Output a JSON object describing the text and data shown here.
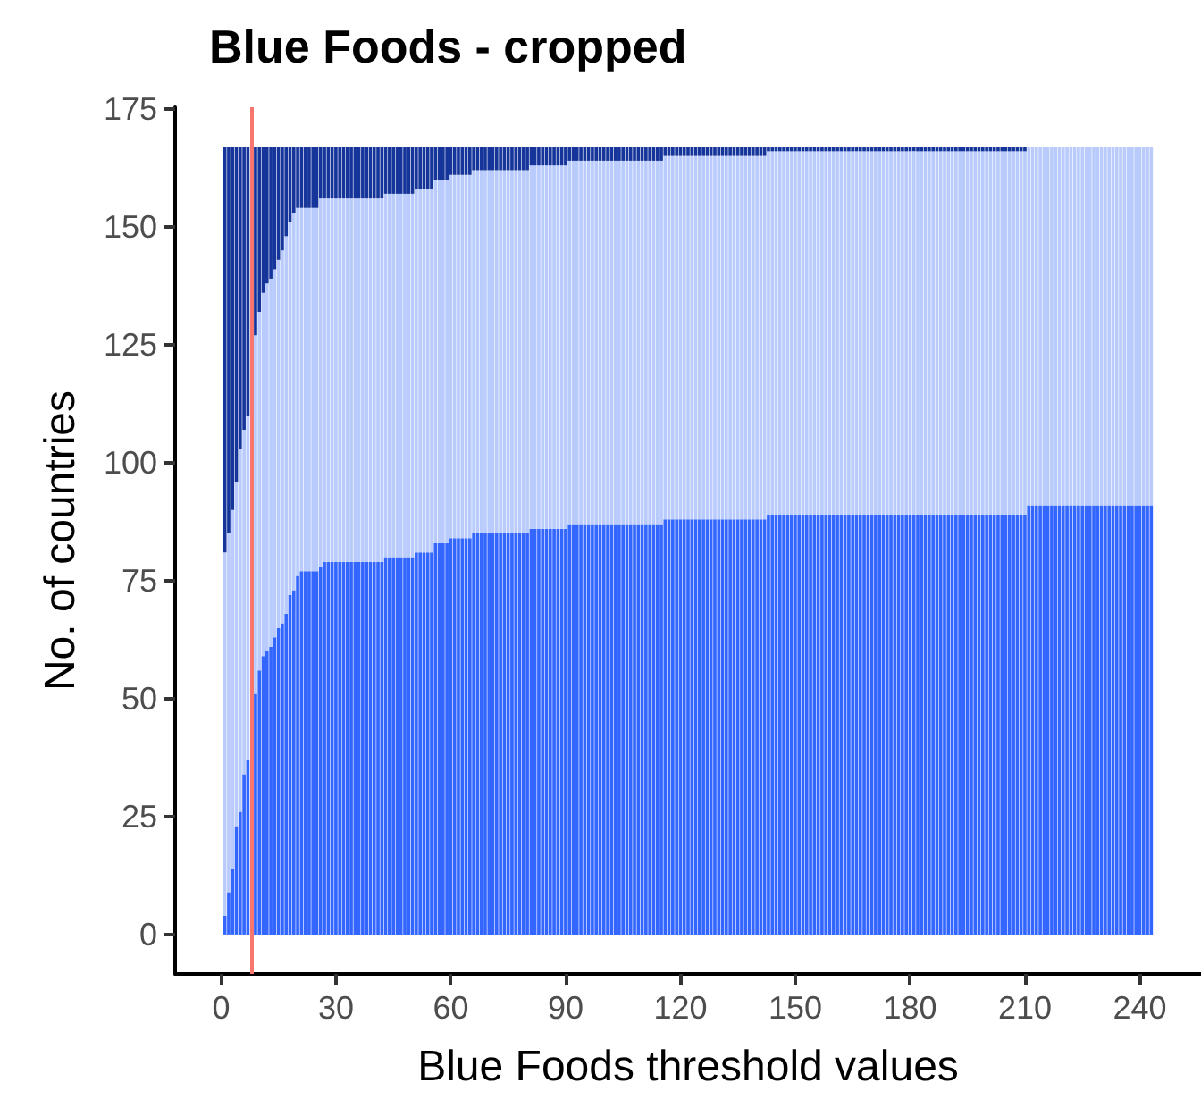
{
  "chart_data": {
    "type": "bar",
    "title": "Blue Foods - cropped",
    "xlabel": "Blue Foods threshold values",
    "ylabel": "No. of countries",
    "stacked": true,
    "x": [
      1,
      2,
      3,
      4,
      5,
      6,
      7,
      8,
      9,
      10,
      11,
      12,
      13,
      14,
      15,
      16,
      17,
      18,
      19,
      20,
      21,
      22,
      23,
      24,
      25,
      26,
      27,
      28,
      29,
      30,
      31,
      32,
      33,
      34,
      35,
      36,
      37,
      38,
      39,
      40,
      41,
      42,
      43,
      44,
      45,
      46,
      47,
      48,
      49,
      50,
      51,
      52,
      53,
      54,
      55,
      56,
      57,
      58,
      59,
      60,
      61,
      62,
      63,
      64,
      65,
      66,
      67,
      68,
      69,
      70,
      71,
      72,
      73,
      74,
      75,
      76,
      77,
      78,
      79,
      80,
      81,
      82,
      83,
      84,
      85,
      86,
      87,
      88,
      89,
      90,
      91,
      92,
      93,
      94,
      95,
      96,
      97,
      98,
      99,
      100,
      101,
      102,
      103,
      104,
      105,
      106,
      107,
      108,
      109,
      110,
      111,
      112,
      113,
      114,
      115,
      116,
      117,
      118,
      119,
      120,
      121,
      122,
      123,
      124,
      125,
      126,
      127,
      128,
      129,
      130,
      131,
      132,
      133,
      134,
      135,
      136,
      137,
      138,
      139,
      140,
      141,
      142,
      143,
      144,
      145,
      146,
      147,
      148,
      149,
      150,
      151,
      152,
      153,
      154,
      155,
      156,
      157,
      158,
      159,
      160,
      161,
      162,
      163,
      164,
      165,
      166,
      167,
      168,
      169,
      170,
      171,
      172,
      173,
      174,
      175,
      176,
      177,
      178,
      179,
      180,
      181,
      182,
      183,
      184,
      185,
      186,
      187,
      188,
      189,
      190,
      191,
      192,
      193,
      194,
      195,
      196,
      197,
      198,
      199,
      200,
      201,
      202,
      203,
      204,
      205,
      206,
      207,
      208,
      209,
      210,
      211,
      212,
      213,
      214,
      215,
      216,
      217,
      218,
      219,
      220,
      221,
      222,
      223,
      224,
      225,
      226,
      227,
      228,
      229,
      230,
      231,
      232,
      233,
      234,
      235,
      236,
      237,
      238,
      239,
      240,
      241,
      242,
      243
    ],
    "series": [
      {
        "color": "#3366ff",
        "values": [
          4,
          9,
          14,
          23,
          26,
          34,
          37,
          null,
          51,
          56,
          59,
          60,
          61,
          63,
          65,
          66,
          68,
          72,
          73,
          76,
          77,
          77,
          77,
          77,
          77,
          78,
          79,
          79,
          79,
          79,
          79,
          79,
          79,
          79,
          79,
          79,
          79,
          79,
          79,
          79,
          79,
          79,
          80,
          80,
          80,
          80,
          80,
          80,
          80,
          80,
          81,
          81,
          81,
          81,
          81,
          83,
          83,
          83,
          83,
          84,
          84,
          84,
          84,
          84,
          84,
          85,
          85,
          85,
          85,
          85,
          85,
          85,
          85,
          85,
          85,
          85,
          85,
          85,
          85,
          85,
          86,
          86,
          86,
          86,
          86,
          86,
          86,
          86,
          86,
          86,
          87,
          87,
          87,
          87,
          87,
          87,
          87,
          87,
          87,
          87,
          87,
          87,
          87,
          87,
          87,
          87,
          87,
          87,
          87,
          87,
          87,
          87,
          87,
          87,
          87,
          88,
          88,
          88,
          88,
          88,
          88,
          88,
          88,
          88,
          88,
          88,
          88,
          88,
          88,
          88,
          88,
          88,
          88,
          88,
          88,
          88,
          88,
          88,
          88,
          88,
          88,
          88,
          89,
          89,
          89,
          89,
          89,
          89,
          89,
          89,
          89,
          89,
          89,
          89,
          89,
          89,
          89,
          89,
          89,
          89,
          89,
          89,
          89,
          89,
          89,
          89,
          89,
          89,
          89,
          89,
          89,
          89,
          89,
          89,
          89,
          89,
          89,
          89,
          89,
          89,
          89,
          89,
          89,
          89,
          89,
          89,
          89,
          89,
          89,
          89,
          89,
          89,
          89,
          89,
          89,
          89,
          89,
          89,
          89,
          89,
          89,
          89,
          89,
          89,
          89,
          89,
          89,
          89,
          89,
          89,
          91,
          91,
          91,
          91,
          91,
          91,
          91,
          91,
          91,
          91,
          91,
          91,
          91,
          91,
          91,
          91,
          91,
          91,
          91,
          91,
          91,
          91,
          91,
          91,
          91,
          91,
          91,
          91,
          91,
          91,
          91,
          91,
          91
        ]
      },
      {
        "color": "#b8cbfc",
        "values": [
          77,
          76,
          76,
          73,
          77,
          73,
          73,
          null,
          76,
          76,
          77,
          78,
          78,
          78,
          78,
          79,
          80,
          79,
          80,
          78,
          77,
          77,
          77,
          77,
          77,
          78,
          77,
          77,
          77,
          77,
          77,
          77,
          77,
          77,
          77,
          77,
          77,
          77,
          77,
          77,
          77,
          77,
          77,
          77,
          77,
          77,
          77,
          77,
          77,
          77,
          77,
          77,
          77,
          77,
          77,
          77,
          77,
          77,
          77,
          77,
          77,
          77,
          77,
          77,
          77,
          77,
          77,
          77,
          77,
          77,
          77,
          77,
          77,
          77,
          77,
          77,
          77,
          77,
          77,
          77,
          77,
          77,
          77,
          77,
          77,
          77,
          77,
          77,
          77,
          77,
          77,
          77,
          77,
          77,
          77,
          77,
          77,
          77,
          77,
          77,
          77,
          77,
          77,
          77,
          77,
          77,
          77,
          77,
          77,
          77,
          77,
          77,
          77,
          77,
          77,
          77,
          77,
          77,
          77,
          77,
          77,
          77,
          77,
          77,
          77,
          77,
          77,
          77,
          77,
          77,
          77,
          77,
          77,
          77,
          77,
          77,
          77,
          77,
          77,
          77,
          77,
          77,
          77,
          77,
          77,
          77,
          77,
          77,
          77,
          77,
          77,
          77,
          77,
          77,
          77,
          77,
          77,
          77,
          77,
          77,
          77,
          77,
          77,
          77,
          77,
          77,
          77,
          77,
          77,
          77,
          77,
          77,
          77,
          77,
          77,
          77,
          77,
          77,
          77,
          77,
          77,
          77,
          77,
          77,
          77,
          77,
          77,
          77,
          77,
          77,
          77,
          77,
          77,
          77,
          77,
          77,
          77,
          77,
          77,
          77,
          77,
          77,
          77,
          77,
          77,
          77,
          77,
          77,
          77,
          77,
          76,
          76,
          76,
          76,
          76,
          76,
          76,
          76,
          76,
          76,
          76,
          76,
          76,
          76,
          76,
          76,
          76,
          76,
          76,
          76,
          76,
          76,
          76,
          76,
          76,
          76,
          76,
          76,
          76,
          76,
          76,
          76,
          76
        ]
      },
      {
        "color": "#15359b",
        "values": [
          86,
          82,
          77,
          71,
          64,
          60,
          57,
          null,
          40,
          35,
          31,
          29,
          28,
          26,
          24,
          22,
          19,
          16,
          14,
          13,
          13,
          13,
          13,
          13,
          13,
          11,
          11,
          11,
          11,
          11,
          11,
          11,
          11,
          11,
          11,
          11,
          11,
          11,
          11,
          11,
          11,
          11,
          10,
          10,
          10,
          10,
          10,
          10,
          10,
          10,
          9,
          9,
          9,
          9,
          9,
          7,
          7,
          7,
          7,
          6,
          6,
          6,
          6,
          6,
          6,
          5,
          5,
          5,
          5,
          5,
          5,
          5,
          5,
          5,
          5,
          5,
          5,
          5,
          5,
          5,
          4,
          4,
          4,
          4,
          4,
          4,
          4,
          4,
          4,
          4,
          3,
          3,
          3,
          3,
          3,
          3,
          3,
          3,
          3,
          3,
          3,
          3,
          3,
          3,
          3,
          3,
          3,
          3,
          3,
          3,
          3,
          3,
          3,
          3,
          3,
          2,
          2,
          2,
          2,
          2,
          2,
          2,
          2,
          2,
          2,
          2,
          2,
          2,
          2,
          2,
          2,
          2,
          2,
          2,
          2,
          2,
          2,
          2,
          2,
          2,
          2,
          2,
          1,
          1,
          1,
          1,
          1,
          1,
          1,
          1,
          1,
          1,
          1,
          1,
          1,
          1,
          1,
          1,
          1,
          1,
          1,
          1,
          1,
          1,
          1,
          1,
          1,
          1,
          1,
          1,
          1,
          1,
          1,
          1,
          1,
          1,
          1,
          1,
          1,
          1,
          1,
          1,
          1,
          1,
          1,
          1,
          1,
          1,
          1,
          1,
          1,
          1,
          1,
          1,
          1,
          1,
          1,
          1,
          1,
          1,
          1,
          1,
          1,
          1,
          1,
          1,
          1,
          1,
          1,
          1,
          0,
          0,
          0,
          0,
          0,
          0,
          0,
          0,
          0,
          0,
          0,
          0,
          0,
          0,
          0,
          0,
          0,
          0,
          0,
          0,
          0,
          0,
          0,
          0,
          0,
          0,
          0,
          0,
          0,
          0,
          0,
          0,
          0
        ]
      }
    ],
    "xlim": [
      -12,
      256
    ],
    "ylim": [
      -8.35,
      175.35
    ],
    "xticks": [
      0,
      30,
      60,
      90,
      120,
      150,
      180,
      210,
      240
    ],
    "yticks": [
      0,
      25,
      50,
      75,
      100,
      125,
      150,
      175
    ],
    "ref_lines": [
      {
        "axis": "x",
        "value": 8,
        "color": "#f8766d"
      }
    ]
  }
}
